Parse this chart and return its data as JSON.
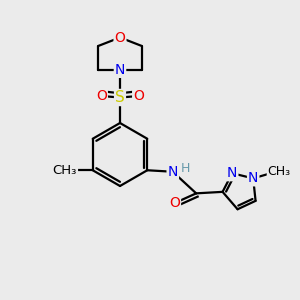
{
  "bg_color": "#ebebeb",
  "atom_colors": {
    "C": "#000000",
    "N": "#0000ee",
    "O": "#ee0000",
    "S": "#cccc00",
    "H": "#6699aa"
  },
  "bond_color": "#000000",
  "bond_width": 1.6,
  "font_size": 10,
  "fig_size": [
    3.0,
    3.0
  ],
  "dpi": 100
}
